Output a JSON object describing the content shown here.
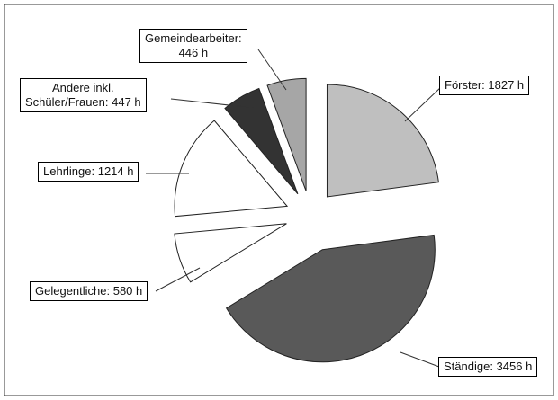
{
  "chart_data": {
    "type": "pie",
    "values": [
      1827,
      3456,
      580,
      1214,
      447,
      446
    ],
    "value_labels": [
      "Förster: 1827 h",
      "Ständige: 3456 h",
      "Gelegentliche: 580 h",
      "Lehrlinge: 1214 h",
      "Andere inkl.\nSchüler/Frauen: 447 h",
      "Gemeindearbeiter:\n446 h"
    ],
    "colors": [
      "#bfbfbf",
      "#595959",
      "#ffffff",
      "#ffffff",
      "#333333",
      "#a6a6a6"
    ]
  }
}
